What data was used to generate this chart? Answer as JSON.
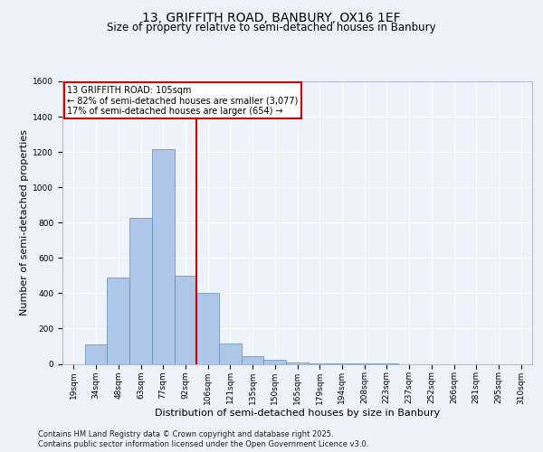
{
  "title_line1": "13, GRIFFITH ROAD, BANBURY, OX16 1EF",
  "title_line2": "Size of property relative to semi-detached houses in Banbury",
  "xlabel": "Distribution of semi-detached houses by size in Banbury",
  "ylabel": "Number of semi-detached properties",
  "bin_labels": [
    "19sqm",
    "34sqm",
    "48sqm",
    "63sqm",
    "77sqm",
    "92sqm",
    "106sqm",
    "121sqm",
    "135sqm",
    "150sqm",
    "165sqm",
    "179sqm",
    "194sqm",
    "208sqm",
    "223sqm",
    "237sqm",
    "252sqm",
    "266sqm",
    "281sqm",
    "295sqm",
    "310sqm"
  ],
  "bar_values": [
    0,
    110,
    490,
    825,
    1215,
    500,
    400,
    115,
    45,
    25,
    10,
    5,
    2,
    1,
    1,
    0,
    0,
    0,
    0,
    0,
    0
  ],
  "bar_color": "#aec6e8",
  "bar_edge_color": "#5b8db8",
  "vline_index": 6,
  "annotation_text": "13 GRIFFITH ROAD: 105sqm\n← 82% of semi-detached houses are smaller (3,077)\n17% of semi-detached houses are larger (654) →",
  "annotation_box_color": "#ffffff",
  "annotation_box_edge_color": "#cc0000",
  "vline_color": "#cc0000",
  "ylim": [
    0,
    1600
  ],
  "yticks": [
    0,
    200,
    400,
    600,
    800,
    1000,
    1200,
    1400,
    1600
  ],
  "background_color": "#eef2fb",
  "grid_color": "#ffffff",
  "footer_line1": "Contains HM Land Registry data © Crown copyright and database right 2025.",
  "footer_line2": "Contains public sector information licensed under the Open Government Licence v3.0.",
  "title_fontsize": 10,
  "subtitle_fontsize": 8.5,
  "axis_label_fontsize": 8,
  "tick_fontsize": 6.5,
  "annotation_fontsize": 7,
  "footer_fontsize": 6
}
